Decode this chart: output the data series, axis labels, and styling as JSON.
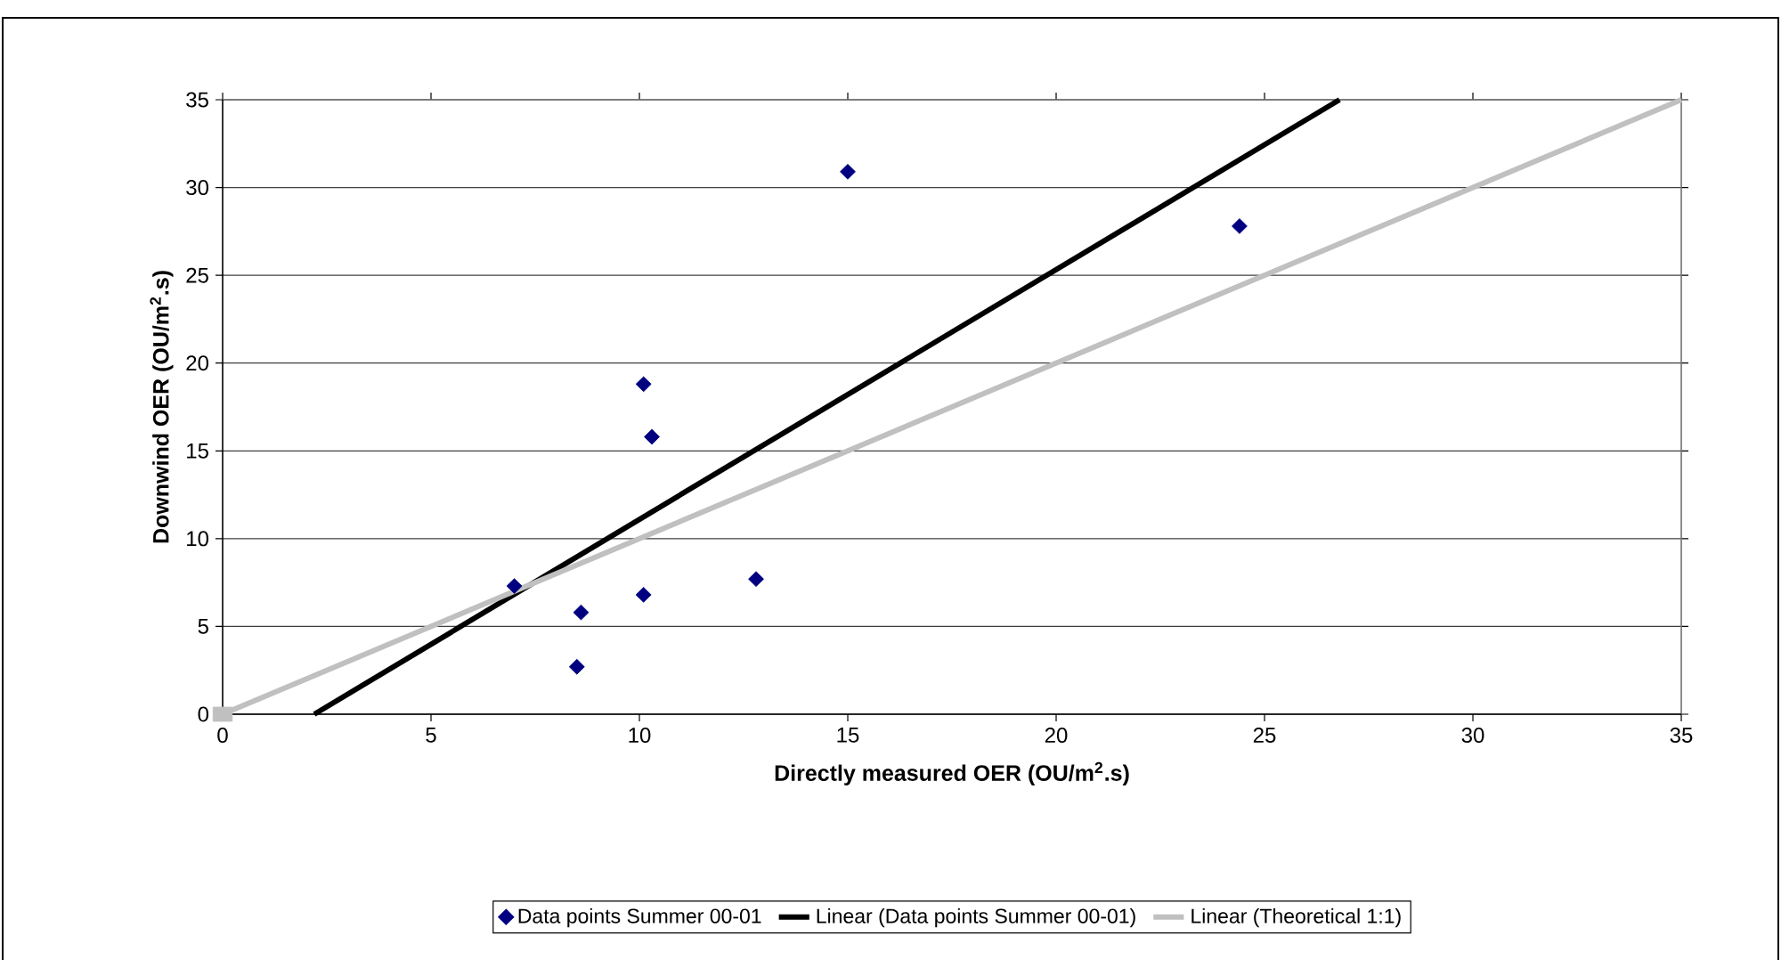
{
  "chart_data": {
    "type": "scatter",
    "xlabel": "Directly measured OER (OU/m$^{2}$.s)",
    "ylabel": "Downwind OER (OU/m$^{2}$.s)",
    "xlim": [
      0,
      35
    ],
    "ylim": [
      0,
      35
    ],
    "xticks": [
      0,
      5,
      10,
      15,
      20,
      25,
      30,
      35
    ],
    "yticks": [
      0,
      5,
      10,
      15,
      20,
      25,
      30,
      35
    ],
    "grid": "y",
    "legend": "bottom",
    "series": [
      {
        "name": "Data points Summer 00-01",
        "type": "scatter",
        "marker": "diamond",
        "color": "#000080",
        "x": [
          7.0,
          8.6,
          8.5,
          10.1,
          10.3,
          10.1,
          12.8,
          15.0,
          24.4
        ],
        "values": [
          7.3,
          5.8,
          2.7,
          18.8,
          15.8,
          6.8,
          7.7,
          30.9,
          27.8
        ]
      },
      {
        "name": "Linear (Data points Summer 00-01)",
        "type": "line",
        "marker": "none",
        "color": "#000000",
        "x": [
          2.2,
          26.8
        ],
        "values": [
          0,
          35
        ]
      },
      {
        "name": "Linear (Theoretical 1:1)",
        "type": "line",
        "marker": "none",
        "color": "#c0c0c0",
        "x": [
          0,
          35
        ],
        "values": [
          0,
          35
        ]
      },
      {
        "type": "scatter",
        "marker": "square",
        "color": "#c0c0c0",
        "x": [
          0
        ],
        "values": [
          0
        ]
      }
    ]
  }
}
